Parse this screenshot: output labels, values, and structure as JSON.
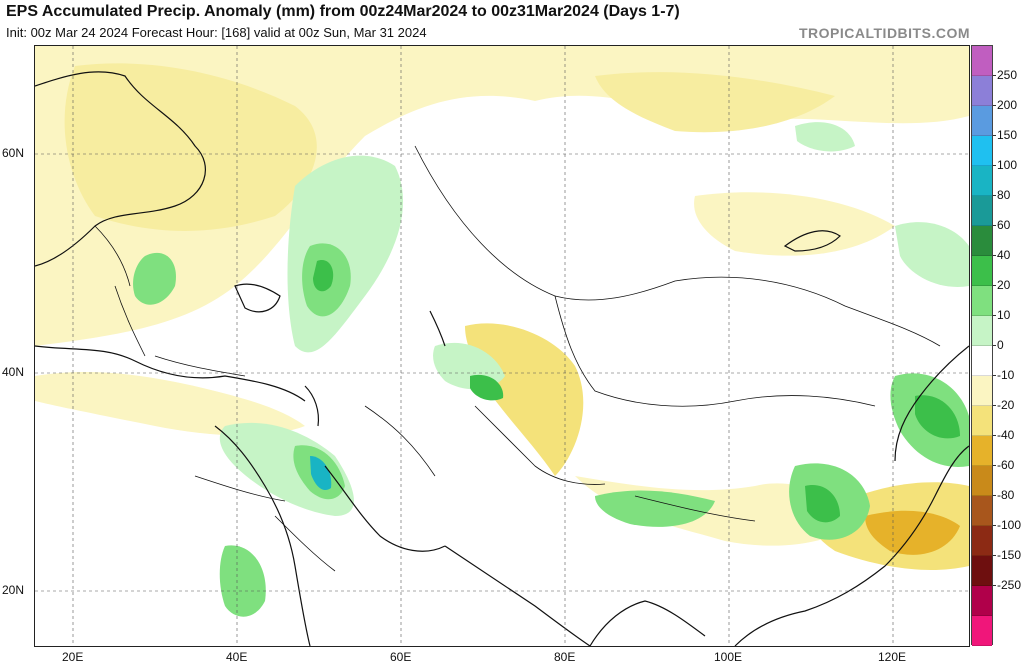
{
  "header": {
    "title": "EPS Accumulated Precip. Anomaly (mm) from 00z24Mar2024 to 00z31Mar2024 (Days 1-7)",
    "subtitle": "Init: 00z Mar 24 2024   Forecast Hour: [168]   valid at 00z Sun, Mar 31 2024",
    "brand": "TROPICALTIDBITS.COM"
  },
  "map": {
    "lat_labels": [
      "60N",
      "40N",
      "20N"
    ],
    "lon_labels": [
      "20E",
      "40E",
      "60E",
      "80E",
      "100E",
      "120E"
    ]
  },
  "colorbar": {
    "labels": [
      "250",
      "200",
      "150",
      "100",
      "80",
      "60",
      "40",
      "20",
      "10",
      "0",
      "-10",
      "-20",
      "-40",
      "-60",
      "-80",
      "-100",
      "-150",
      "-250"
    ],
    "colors": [
      "#c05ec0",
      "#8c7fd8",
      "#5a9be0",
      "#1fc0f0",
      "#19b4c4",
      "#1a9a98",
      "#2a8c3c",
      "#3cbf4a",
      "#7fe07f",
      "#c6f4c6",
      "#ffffff",
      "#fbf5c2",
      "#f4e27a",
      "#e6b22a",
      "#c98a1a",
      "#a8561c",
      "#8c2a14",
      "#6e0f0f",
      "#b0004a",
      "#f0167a"
    ]
  }
}
